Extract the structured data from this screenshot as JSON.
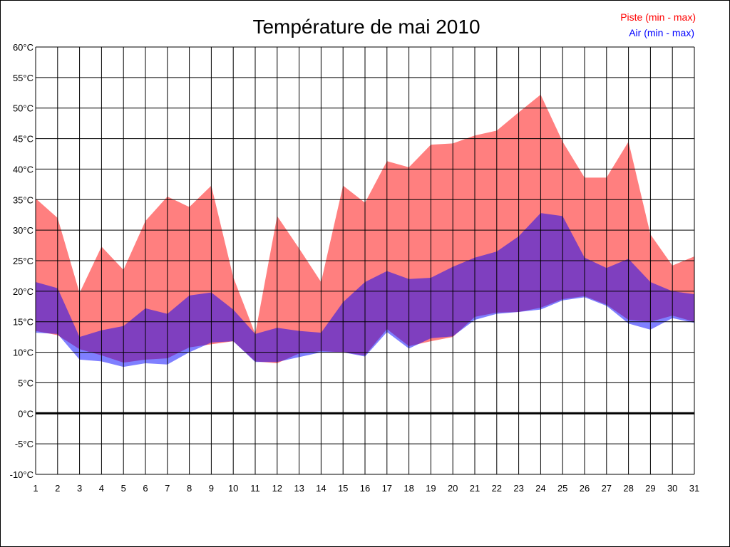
{
  "chart_data": {
    "type": "area",
    "title": "Température de mai 2010",
    "xlabel": "",
    "ylabel": "",
    "unit": "°C",
    "x": [
      1,
      2,
      3,
      4,
      5,
      6,
      7,
      8,
      9,
      10,
      11,
      12,
      13,
      14,
      15,
      16,
      17,
      18,
      19,
      20,
      21,
      22,
      23,
      24,
      25,
      26,
      27,
      28,
      29,
      30,
      31
    ],
    "ylim": [
      -10,
      60
    ],
    "yticks": [
      -10,
      -5,
      0,
      5,
      10,
      15,
      20,
      25,
      30,
      35,
      40,
      45,
      50,
      55,
      60
    ],
    "grid": true,
    "legend_position": "top-right",
    "series": [
      {
        "name": "Piste (min - max)",
        "color": "#ff0000",
        "fill": "rgba(255,0,0,0.5)",
        "max": [
          35.2,
          32,
          19.7,
          27.3,
          23.5,
          31.5,
          35.5,
          33.8,
          37.3,
          22.3,
          13,
          32.3,
          27,
          21.5,
          37.3,
          34.5,
          41.3,
          40.3,
          44,
          44.2,
          45.5,
          46.3,
          49.3,
          52.2,
          44.5,
          38.6,
          38.6,
          44.5,
          29.3,
          24.2,
          25.7
        ],
        "min": [
          13.5,
          12.8,
          10.5,
          9.5,
          8.3,
          8.8,
          9,
          10.8,
          11.3,
          11.8,
          8.5,
          8.2,
          9.8,
          10.2,
          10,
          9.5,
          13.8,
          11,
          11.8,
          12.5,
          15.8,
          16.5,
          16.6,
          17.3,
          18.7,
          19.2,
          17.8,
          15.3,
          15,
          16,
          15
        ]
      },
      {
        "name": "Air (min - max)",
        "color": "#0000ff",
        "fill": "rgba(0,0,255,0.5)",
        "max": [
          21.5,
          20.5,
          12.5,
          13.6,
          14.3,
          17.2,
          16.3,
          19.3,
          19.8,
          17,
          13,
          14,
          13.5,
          13.2,
          18.2,
          21.5,
          23.3,
          22,
          22.2,
          24,
          25.5,
          26.5,
          29,
          32.8,
          32.3,
          25.5,
          23.8,
          25.3,
          21.5,
          20,
          19.5
        ],
        "min": [
          13.2,
          13,
          8.8,
          8.5,
          7.6,
          8.2,
          8,
          10,
          11.6,
          11.8,
          8.4,
          8.4,
          9.2,
          10,
          10,
          9.3,
          13.3,
          10.6,
          12.3,
          12.6,
          15.3,
          16.3,
          16.6,
          17,
          18.5,
          19,
          17.6,
          14.7,
          13.7,
          15.6,
          14.8
        ]
      }
    ]
  }
}
